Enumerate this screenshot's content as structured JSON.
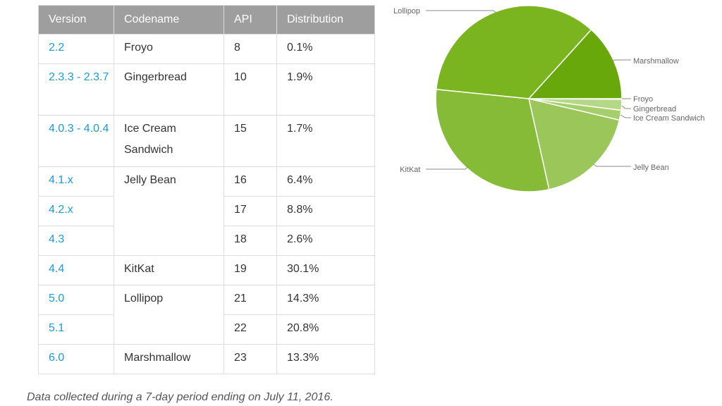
{
  "table": {
    "headers": [
      "Version",
      "Codename",
      "API",
      "Distribution"
    ],
    "rows": [
      {
        "version": "2.2",
        "codename": "Froyo",
        "api": "8",
        "dist": "0.1%"
      },
      {
        "version": "2.3.3 - 2.3.7",
        "codename": "Gingerbread",
        "api": "10",
        "dist": "1.9%"
      },
      {
        "version": "4.0.3 - 4.0.4",
        "codename": "Ice Cream Sandwich",
        "api": "15",
        "dist": "1.7%"
      },
      {
        "version": "4.1.x",
        "codename": "Jelly Bean",
        "api": "16",
        "dist": "6.4%"
      },
      {
        "version": "4.2.x",
        "codename": "",
        "api": "17",
        "dist": "8.8%"
      },
      {
        "version": "4.3",
        "codename": "",
        "api": "18",
        "dist": "2.6%"
      },
      {
        "version": "4.4",
        "codename": "KitKat",
        "api": "19",
        "dist": "30.1%"
      },
      {
        "version": "5.0",
        "codename": "Lollipop",
        "api": "21",
        "dist": "14.3%"
      },
      {
        "version": "5.1",
        "codename": "",
        "api": "22",
        "dist": "20.8%"
      },
      {
        "version": "6.0",
        "codename": "Marshmallow",
        "api": "23",
        "dist": "13.3%"
      }
    ]
  },
  "caption": "Data collected during a 7-day period ending on July 11, 2016.",
  "chart_data": {
    "type": "pie",
    "start": "3 o'clock, clockwise",
    "slices": [
      {
        "label": "Froyo",
        "value": 0.1,
        "color": "#c8e3a2"
      },
      {
        "label": "Gingerbread",
        "value": 1.9,
        "color": "#b5d887"
      },
      {
        "label": "Ice Cream Sandwich",
        "value": 1.7,
        "color": "#a6ce6b"
      },
      {
        "label": "Jelly Bean",
        "value": 17.8,
        "color": "#9bc65a"
      },
      {
        "label": "KitKat",
        "value": 30.1,
        "color": "#85bb37"
      },
      {
        "label": "Lollipop",
        "value": 35.1,
        "color": "#7ab520"
      },
      {
        "label": "Marshmallow",
        "value": 13.3,
        "color": "#68a80b"
      }
    ]
  }
}
